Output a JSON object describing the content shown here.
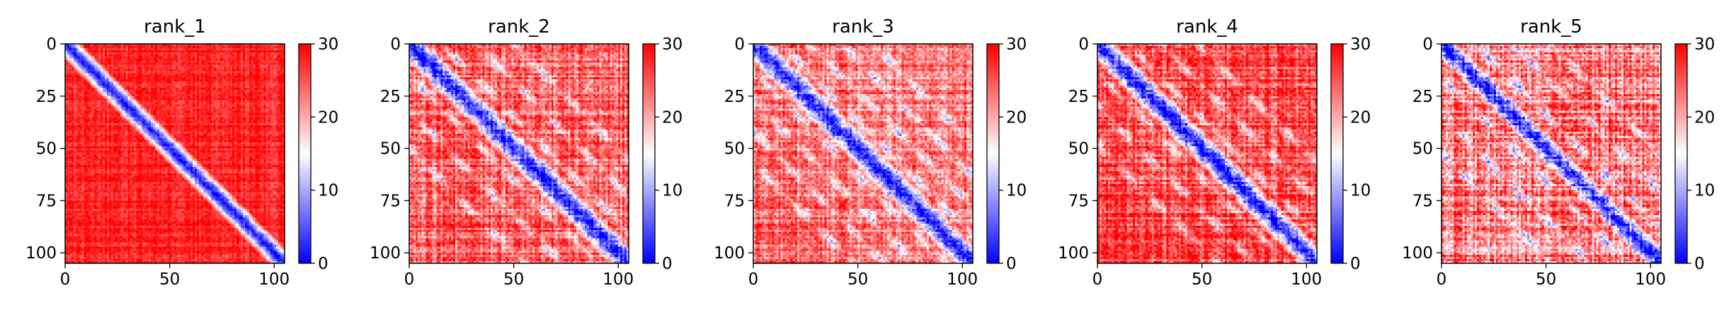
{
  "chart_data": [
    {
      "type": "heatmap",
      "title": "rank_1",
      "xlim": [
        0,
        105
      ],
      "ylim": [
        105,
        0
      ],
      "x_ticks": [
        0,
        50,
        100
      ],
      "y_ticks": [
        0,
        25,
        50,
        75,
        100
      ],
      "colorbar": {
        "min": 0,
        "max": 30,
        "ticks": [
          0,
          10,
          20,
          30
        ],
        "colors": [
          "#0000ff",
          "#ffffff",
          "#ff0000"
        ]
      },
      "pattern": {
        "diagonal_band_width": 5,
        "background_level": 28,
        "noise": 2,
        "off_diagonal_bands": [],
        "grid_texture": 1.5
      }
    },
    {
      "type": "heatmap",
      "title": "rank_2",
      "xlim": [
        0,
        105
      ],
      "ylim": [
        105,
        0
      ],
      "x_ticks": [
        0,
        50,
        100
      ],
      "y_ticks": [
        0,
        25,
        50,
        75,
        100
      ],
      "colorbar": {
        "min": 0,
        "max": 30,
        "ticks": [
          0,
          10,
          20,
          30
        ],
        "colors": [
          "#0000ff",
          "#ffffff",
          "#ff0000"
        ]
      },
      "pattern": {
        "diagonal_band_width": 6,
        "background_level": 24,
        "noise": 4,
        "off_diagonal_bands": [
          15,
          32,
          50
        ],
        "grid_texture": 3
      }
    },
    {
      "type": "heatmap",
      "title": "rank_3",
      "xlim": [
        0,
        105
      ],
      "ylim": [
        105,
        0
      ],
      "x_ticks": [
        0,
        50,
        100
      ],
      "y_ticks": [
        0,
        25,
        50,
        75,
        100
      ],
      "colorbar": {
        "min": 0,
        "max": 30,
        "ticks": [
          0,
          10,
          20,
          30
        ],
        "colors": [
          "#0000ff",
          "#ffffff",
          "#ff0000"
        ]
      },
      "pattern": {
        "diagonal_band_width": 6,
        "background_level": 23,
        "noise": 4,
        "off_diagonal_bands": [
          13,
          27,
          42,
          57
        ],
        "grid_texture": 3
      }
    },
    {
      "type": "heatmap",
      "title": "rank_4",
      "xlim": [
        0,
        105
      ],
      "ylim": [
        105,
        0
      ],
      "x_ticks": [
        0,
        50,
        100
      ],
      "y_ticks": [
        0,
        25,
        50,
        75,
        100
      ],
      "colorbar": {
        "min": 0,
        "max": 30,
        "ticks": [
          0,
          10,
          20,
          30
        ],
        "colors": [
          "#0000ff",
          "#ffffff",
          "#ff0000"
        ]
      },
      "pattern": {
        "diagonal_band_width": 6,
        "background_level": 26,
        "noise": 4,
        "off_diagonal_bands": [
          14,
          30,
          48
        ],
        "grid_texture": 3
      }
    },
    {
      "type": "heatmap",
      "title": "rank_5",
      "xlim": [
        0,
        105
      ],
      "ylim": [
        105,
        0
      ],
      "x_ticks": [
        0,
        50,
        100
      ],
      "y_ticks": [
        0,
        25,
        50,
        75,
        100
      ],
      "colorbar": {
        "min": 0,
        "max": 30,
        "ticks": [
          0,
          10,
          20,
          30
        ],
        "colors": [
          "#0000ff",
          "#ffffff",
          "#ff0000"
        ]
      },
      "pattern": {
        "diagonal_band_width": 5,
        "background_level": 22,
        "noise": 5,
        "off_diagonal_bands": [
          16,
          34,
          52
        ],
        "grid_texture": 4
      }
    }
  ]
}
